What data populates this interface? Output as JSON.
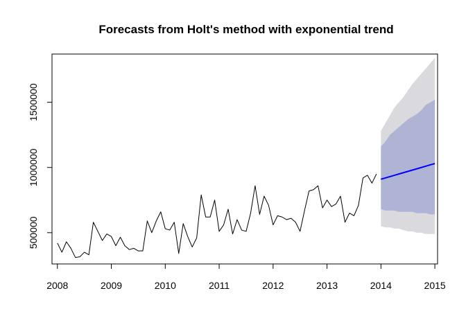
{
  "chart_data": {
    "type": "line",
    "title": "Forecasts from Holt's method with exponential trend",
    "xlabel": "",
    "ylabel": "",
    "xlim": [
      2007.9,
      2015.05
    ],
    "ylim": [
      260000,
      1870000
    ],
    "x_ticks": [
      2008,
      2009,
      2010,
      2011,
      2012,
      2013,
      2014,
      2015
    ],
    "x_tick_labels": [
      "2008",
      "2009",
      "2010",
      "2011",
      "2012",
      "2013",
      "2014",
      "2015"
    ],
    "y_ticks": [
      500000,
      1000000,
      1500000
    ],
    "y_tick_labels": [
      "500000",
      "1000000",
      "1500000"
    ],
    "grid": false,
    "colors": {
      "observed": "#000000",
      "forecast": "#0000ff",
      "band80": "#b0b4d4",
      "band95": "#d9d9de"
    },
    "series": [
      {
        "role": "observed",
        "x_start": 2008.0,
        "x_step": 0.08333,
        "values": [
          420000,
          350000,
          430000,
          380000,
          310000,
          315000,
          350000,
          330000,
          580000,
          510000,
          440000,
          490000,
          470000,
          400000,
          465000,
          400000,
          370000,
          380000,
          360000,
          360000,
          590000,
          500000,
          590000,
          660000,
          530000,
          520000,
          580000,
          340000,
          570000,
          470000,
          390000,
          460000,
          790000,
          620000,
          620000,
          750000,
          510000,
          560000,
          680000,
          490000,
          600000,
          520000,
          510000,
          650000,
          860000,
          640000,
          780000,
          710000,
          560000,
          630000,
          620000,
          600000,
          610000,
          580000,
          510000,
          670000,
          820000,
          830000,
          860000,
          690000,
          750000,
          700000,
          720000,
          780000,
          580000,
          650000,
          630000,
          710000,
          920000,
          940000,
          880000,
          950000
        ]
      },
      {
        "role": "forecast",
        "x_start": 2014.0,
        "x_step": 0.08333,
        "values": [
          910000,
          920000,
          930000,
          940000,
          950000,
          960000,
          970000,
          980000,
          990000,
          1000000,
          1010000,
          1020000,
          1030000
        ]
      }
    ],
    "band80": {
      "x_start": 2014.0,
      "x_step": 0.08333,
      "upper": [
        1160000,
        1200000,
        1250000,
        1280000,
        1310000,
        1340000,
        1370000,
        1390000,
        1410000,
        1440000,
        1480000,
        1500000,
        1520000
      ],
      "lower": [
        680000,
        670000,
        670000,
        670000,
        660000,
        660000,
        660000,
        660000,
        650000,
        650000,
        650000,
        640000,
        640000
      ]
    },
    "band95": {
      "x_start": 2014.0,
      "x_step": 0.08333,
      "upper": [
        1280000,
        1340000,
        1400000,
        1460000,
        1500000,
        1540000,
        1590000,
        1640000,
        1680000,
        1720000,
        1760000,
        1800000,
        1840000
      ],
      "lower": [
        550000,
        540000,
        540000,
        530000,
        530000,
        520000,
        510000,
        510000,
        500000,
        500000,
        490000,
        490000,
        490000
      ]
    }
  }
}
